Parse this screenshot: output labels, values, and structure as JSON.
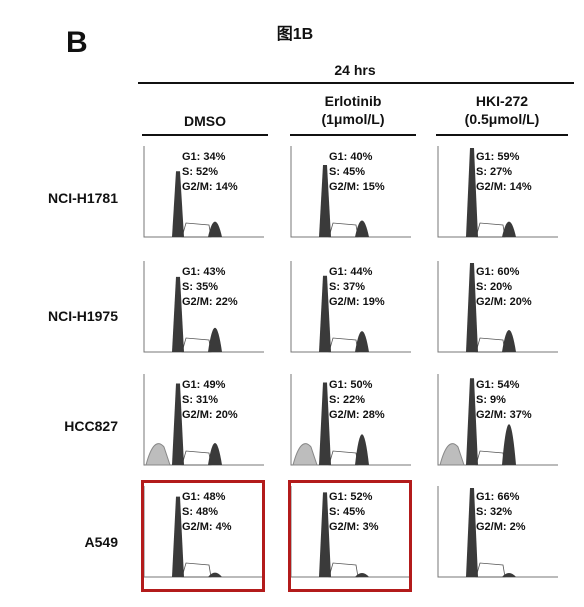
{
  "panel_letter": "B",
  "figure_title": "图1B",
  "time_label": "24 hrs",
  "conditions": [
    {
      "line1": "DMSO",
      "line2": ""
    },
    {
      "line1": "Erlotinib",
      "line2": "(1μmol/L)"
    },
    {
      "line1": "HKI-272",
      "line2": "(0.5μmol/L)"
    }
  ],
  "rows": [
    {
      "label": "NCI-H1781",
      "cells": [
        {
          "g1": "G1: 34%",
          "s": "S: 52%",
          "g2m": "G2/M: 14%"
        },
        {
          "g1": "G1: 40%",
          "s": "S: 45%",
          "g2m": "G2/M: 15%"
        },
        {
          "g1": "G1: 59%",
          "s": "S: 27%",
          "g2m": "G2/M: 14%"
        }
      ]
    },
    {
      "label": "NCI-H1975",
      "cells": [
        {
          "g1": "G1: 43%",
          "s": "S: 35%",
          "g2m": "G2/M: 22%"
        },
        {
          "g1": "G1: 44%",
          "s": "S: 37%",
          "g2m": "G2/M: 19%"
        },
        {
          "g1": "G1: 60%",
          "s": "S: 20%",
          "g2m": "G2/M: 20%"
        }
      ]
    },
    {
      "label": "HCC827",
      "cells": [
        {
          "g1": "G1: 49%",
          "s": "S: 31%",
          "g2m": "G2/M: 20%"
        },
        {
          "g1": "G1: 50%",
          "s": "S: 22%",
          "g2m": "G2/M: 28%"
        },
        {
          "g1": "G1: 54%",
          "s": "S: 9%",
          "g2m": "G2/M: 37%"
        }
      ]
    },
    {
      "label": "A549",
      "cells": [
        {
          "g1": "G1: 48%",
          "s": "S: 48%",
          "g2m": "G2/M: 4%"
        },
        {
          "g1": "G1: 52%",
          "s": "S: 45%",
          "g2m": "G2/M: 3%"
        },
        {
          "g1": "G1: 66%",
          "s": "S: 32%",
          "g2m": "G2/M: 2%"
        }
      ]
    }
  ],
  "colors": {
    "highlight": "#b31b1b",
    "peak_fill": "#3a3a3a",
    "debris_fill": "#bdbdbd"
  }
}
